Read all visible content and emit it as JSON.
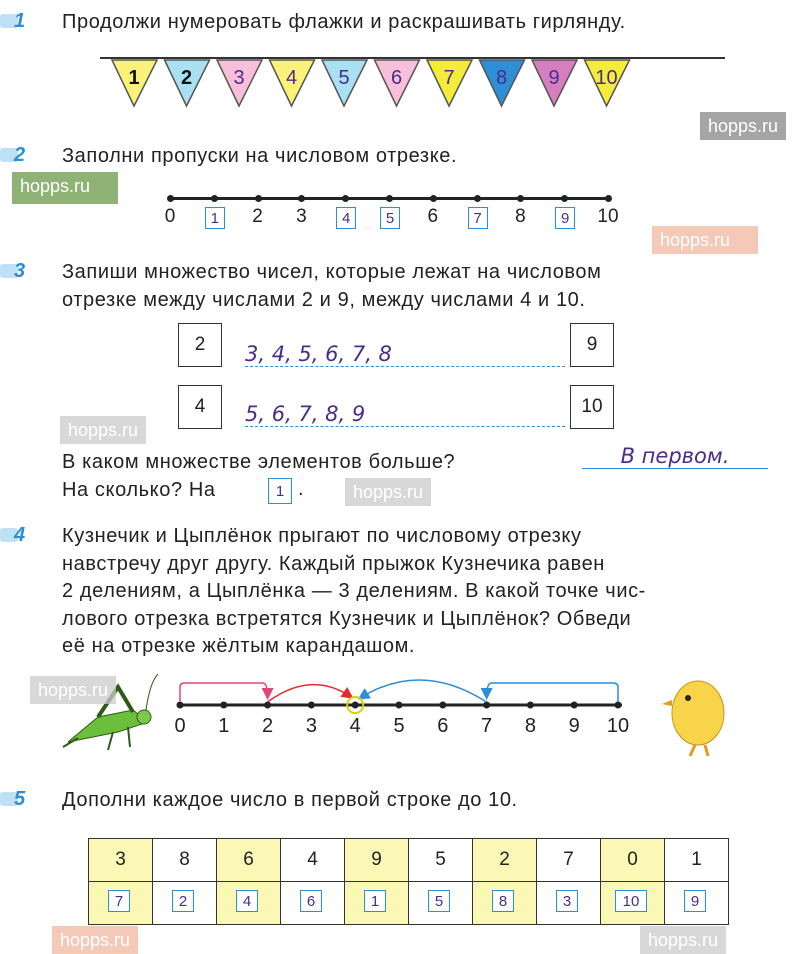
{
  "tasks": {
    "t1": {
      "num": "1",
      "text": "Продолжи нумеровать флажки и раскрашивать гирлянду."
    },
    "t2": {
      "num": "2",
      "text": "Заполни пропуски на числовом отрезке."
    },
    "t3": {
      "num": "3",
      "lines": [
        "Запиши множество чисел, которые лежат на числовом",
        "отрезке между числами 2 и 9, между числами 4 и 10."
      ],
      "sets": [
        {
          "from": "2",
          "to": "9",
          "answer": "3, 4, 5, 6, 7, 8"
        },
        {
          "from": "4",
          "to": "10",
          "answer": "5, 6, 7, 8, 9"
        }
      ],
      "q1": "В каком множестве элементов больше?",
      "a1": "В первом.",
      "q2": "На сколько? На",
      "a2": "1",
      "q2end": "."
    },
    "t4": {
      "num": "4",
      "lines": [
        "Кузнечик и Цыплёнок прыгают по числовому отрезку",
        "навстречу друг другу. Каждый прыжок Кузнечика равен",
        "2 делениям, а Цыплёнка — 3 делениям. В какой точке чис-",
        "лового отрезка встретятся Кузнечик и Цыплёнок? Обведи",
        "её на отрезке жёлтым карандашом."
      ],
      "ticks": [
        "0",
        "1",
        "2",
        "3",
        "4",
        "5",
        "6",
        "7",
        "8",
        "9",
        "10"
      ],
      "meeting_point": 4
    },
    "t5": {
      "num": "5",
      "text": "Дополни каждое число в первой строке до 10.",
      "row1": [
        "3",
        "8",
        "6",
        "4",
        "9",
        "5",
        "2",
        "7",
        "0",
        "1"
      ],
      "row2": [
        "7",
        "2",
        "4",
        "6",
        "1",
        "5",
        "8",
        "3",
        "10",
        "9"
      ]
    }
  },
  "flags": [
    {
      "n": "1",
      "c": "#fbf27a"
    },
    {
      "n": "2",
      "c": "#a9e1f3"
    },
    {
      "n": "3",
      "c": "#f7bfd9"
    },
    {
      "n": "4",
      "c": "#fbf27a"
    },
    {
      "n": "5",
      "c": "#a9e1f3"
    },
    {
      "n": "6",
      "c": "#f7bfd9"
    },
    {
      "n": "7",
      "c": "#f4ec3a"
    },
    {
      "n": "8",
      "c": "#2f8fd6"
    },
    {
      "n": "9",
      "c": "#d67fc0"
    },
    {
      "n": "10",
      "c": "#f4ec3a"
    }
  ],
  "numberline2": [
    {
      "v": "0",
      "b": false
    },
    {
      "v": "1",
      "b": true
    },
    {
      "v": "2",
      "b": false
    },
    {
      "v": "3",
      "b": false
    },
    {
      "v": "4",
      "b": true
    },
    {
      "v": "5",
      "b": true
    },
    {
      "v": "6",
      "b": false
    },
    {
      "v": "7",
      "b": true
    },
    {
      "v": "8",
      "b": false
    },
    {
      "v": "9",
      "b": true
    },
    {
      "v": "10",
      "b": false
    }
  ],
  "watermark": "hopps.ru"
}
